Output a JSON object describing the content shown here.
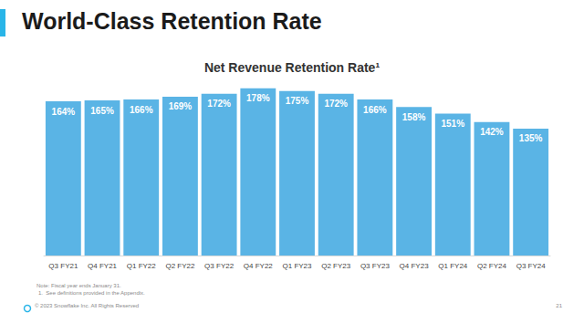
{
  "chart_data": {
    "type": "bar",
    "title": "World-Class Retention Rate",
    "subtitle": "Net Revenue Retention Rate¹",
    "categories": [
      "Q3 FY21",
      "Q4 FY21",
      "Q1 FY22",
      "Q2 FY22",
      "Q3 FY22",
      "Q4 FY22",
      "Q1 FY23",
      "Q2 FY23",
      "Q3 FY23",
      "Q4 FY23",
      "Q1 FY24",
      "Q2 FY24",
      "Q3 FY24"
    ],
    "values": [
      164,
      165,
      166,
      169,
      172,
      178,
      175,
      172,
      166,
      158,
      151,
      142,
      135
    ],
    "value_labels": [
      "164%",
      "165%",
      "166%",
      "169%",
      "172%",
      "178%",
      "175%",
      "172%",
      "166%",
      "158%",
      "151%",
      "142%",
      "135%"
    ],
    "color": "#5ab4e5",
    "ylim": [
      0,
      200
    ],
    "yticks": [
      0,
      50,
      100,
      150,
      200
    ],
    "grid": false,
    "data_labels": true,
    "tick_labels": "x",
    "annotations": [
      "Note: Fiscal year ends January 31.",
      "1.  See definitions provided in the Appendix.",
      "© 2023 Snowflake Inc. All Rights Reserved",
      "21"
    ]
  }
}
